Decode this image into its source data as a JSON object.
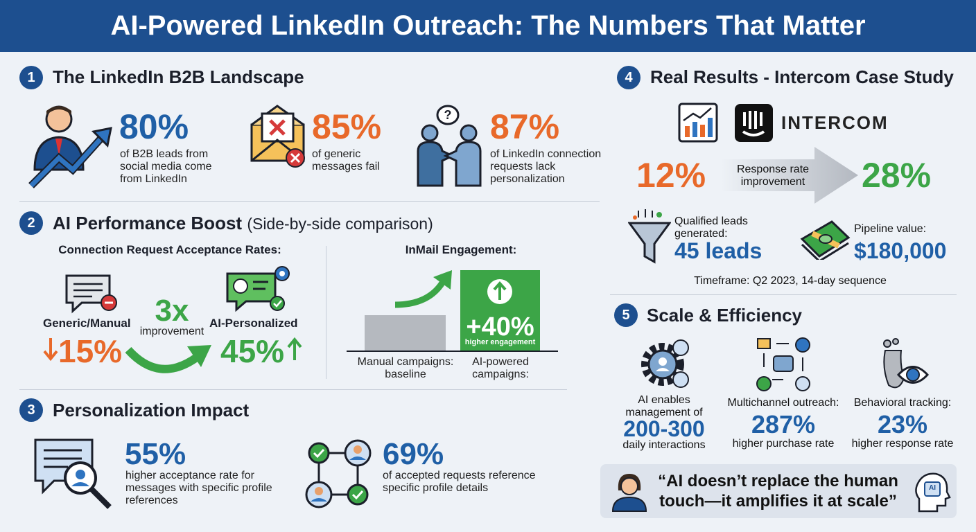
{
  "title": "AI-Powered LinkedIn Outreach: The Numbers That Matter",
  "landscape": {
    "number": "1",
    "title": "The LinkedIn B2B Landscape",
    "stats": [
      {
        "value": "80%",
        "text": "of B2B leads from social media come from LinkedIn"
      },
      {
        "value": "85%",
        "text": "of generic messages fail"
      },
      {
        "value": "87%",
        "text": "of LinkedIn connection requests lack personalization"
      }
    ]
  },
  "boost": {
    "number": "2",
    "title": "AI Performance Boost",
    "subtitle": "(Side-by-side comparison)",
    "acceptance": {
      "heading": "Connection Request Acceptance Rates:",
      "generic_label": "Generic/Manual",
      "generic_value": "15%",
      "multiplier": "3x",
      "multiplier_label": "improvement",
      "ai_label": "AI-Personalized",
      "ai_value": "45%"
    },
    "inmail": {
      "heading": "InMail Engagement:",
      "boost_value": "+40%",
      "boost_label": "higher engagement",
      "manual_label": "Manual campaigns: baseline",
      "ai_label": "AI-powered campaigns:"
    }
  },
  "personalization": {
    "number": "3",
    "title": "Personalization Impact",
    "stats": [
      {
        "value": "55%",
        "text": "higher acceptance rate for messages with specific profile references"
      },
      {
        "value": "69%",
        "text": "of accepted requests reference specific profile details"
      }
    ]
  },
  "case_study": {
    "number": "4",
    "title": "Real Results - Intercom Case Study",
    "brand": "INTERCOM",
    "from": "12%",
    "to": "28%",
    "arrow_label": "Response rate improvement",
    "leads_label": "Qualified leads generated:",
    "leads_value": "45 leads",
    "pipeline_label": "Pipeline value:",
    "pipeline_value": "$180,000",
    "timeframe": "Timeframe: Q2 2023, 14-day sequence"
  },
  "scale": {
    "number": "5",
    "title": "Scale & Efficiency",
    "items": [
      {
        "label": "AI enables management of",
        "value": "200-300",
        "note": "daily interactions"
      },
      {
        "label": "Multichannel outreach:",
        "value": "287%",
        "note": "higher purchase rate"
      },
      {
        "label": "Behavioral tracking:",
        "value": "23%",
        "note": "higher response rate"
      }
    ],
    "quote": "“AI doesn’t replace the human touch—it amplifies it at scale”",
    "chip": "AI"
  }
}
